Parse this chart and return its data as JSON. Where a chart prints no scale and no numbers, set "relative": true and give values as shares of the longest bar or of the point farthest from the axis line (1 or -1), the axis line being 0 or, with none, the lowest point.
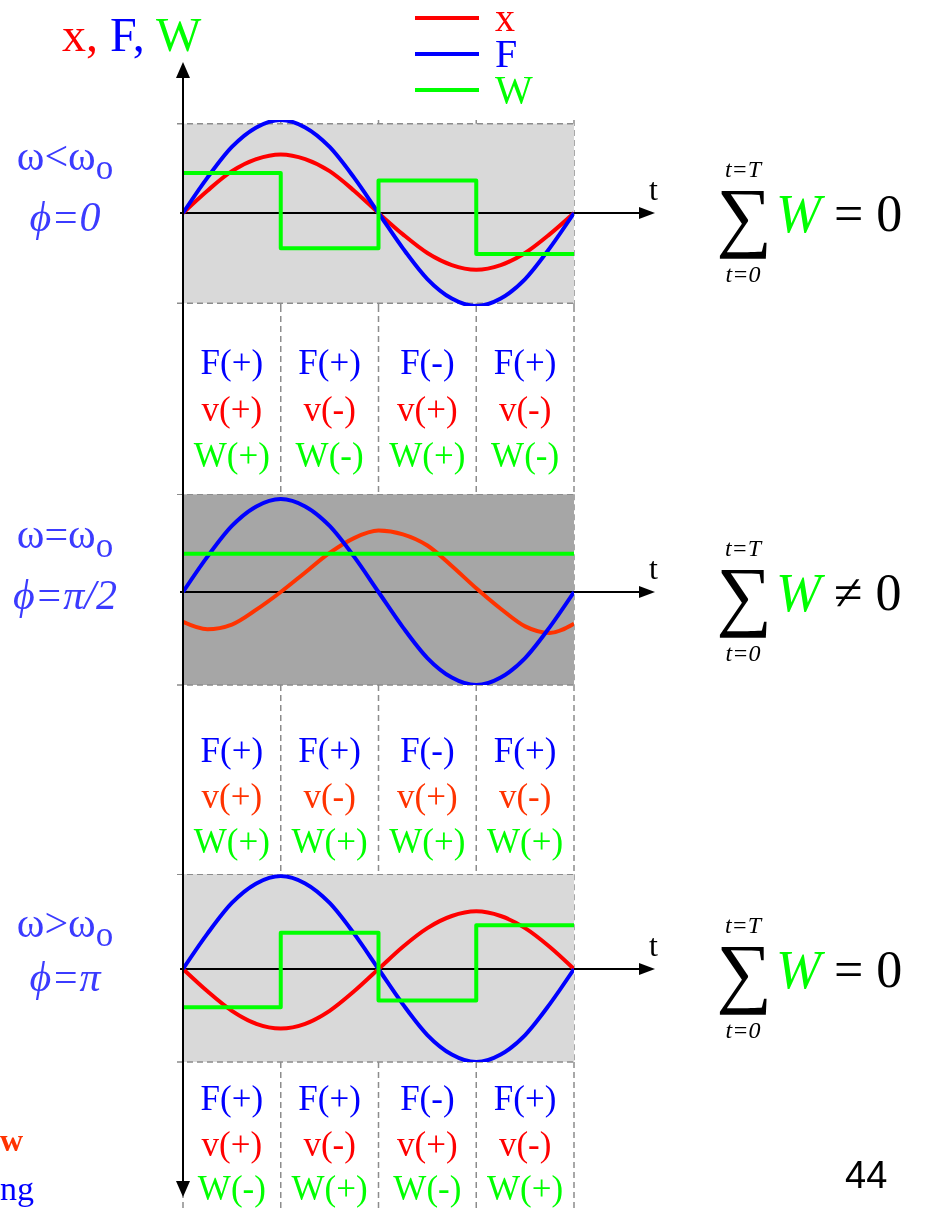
{
  "chart_data": [
    {
      "type": "line",
      "relative": true,
      "title": "ω<ω$_{o}$",
      "subtitle": "ϕ=0",
      "xlabel": "t",
      "ylabel": "x, F, W",
      "legend": "top",
      "grid": "x",
      "categories": [
        null,
        null,
        null,
        null,
        null,
        null,
        null,
        null,
        null,
        null,
        null,
        null,
        null,
        null,
        null,
        null,
        null
      ],
      "series": [
        {
          "name": "x",
          "color": "#ff0000",
          "values": [
            0,
            0.24,
            0.45,
            0.58,
            0.63,
            0.58,
            0.45,
            0.24,
            0,
            -0.23,
            -0.43,
            -0.56,
            -0.61,
            -0.56,
            -0.43,
            -0.23,
            0
          ]
        },
        {
          "name": "F",
          "color": "#0000ff",
          "values": [
            0,
            0.38,
            0.71,
            0.92,
            1,
            0.92,
            0.71,
            0.38,
            0,
            -0.38,
            -0.71,
            -0.92,
            -1,
            -0.92,
            -0.71,
            -0.38,
            0
          ]
        },
        {
          "name": "W",
          "type": "step",
          "color": "#00ff00",
          "values": [
            0.43,
            0.43,
            0.43,
            0.43,
            -0.38,
            -0.38,
            -0.38,
            -0.38,
            0.35,
            0.35,
            0.35,
            0.35,
            -0.44,
            -0.44,
            -0.44,
            -0.44,
            -0.44
          ]
        }
      ],
      "bands": [
        {
          "axis": "y",
          "from": -0.97,
          "to": 0.96,
          "color": "#d9d9d9"
        }
      ],
      "annotations": [
        "F(+)",
        "F(+)",
        "F(-)",
        "F(+)",
        "v(+)",
        "v(-)",
        "v(+)",
        "v(-)",
        "W(+)",
        "W(-)",
        "W(+)",
        "W(-)",
        "t=T",
        "∑",
        "W",
        "= 0",
        "t=0"
      ]
    },
    {
      "type": "line",
      "relative": true,
      "title": "ω=ω$_{o}$",
      "subtitle": "ϕ=π/2",
      "xlabel": "t",
      "grid": "x",
      "categories": [
        null,
        null,
        null,
        null,
        null,
        null,
        null,
        null,
        null,
        null,
        null,
        null,
        null,
        null,
        null,
        null,
        null
      ],
      "series": [
        {
          "color": "#ff3300",
          "values": [
            -0.32,
            -0.4,
            -0.35,
            -0.19,
            0,
            0.21,
            0.42,
            0.58,
            0.66,
            0.62,
            0.5,
            0.28,
            0.04,
            -0.18,
            -0.37,
            -0.44,
            -0.34
          ]
        },
        {
          "color": "#0000ff",
          "values": [
            0,
            0.38,
            0.71,
            0.92,
            1,
            0.92,
            0.71,
            0.38,
            0,
            -0.38,
            -0.71,
            -0.92,
            -1,
            -0.92,
            -0.71,
            -0.38,
            0
          ]
        },
        {
          "type": "step",
          "color": "#00ff00",
          "values": [
            0.41,
            0.41,
            0.41,
            0.41,
            0.41,
            0.41,
            0.41,
            0.41,
            0.41,
            0.41,
            0.41,
            0.41,
            0.41,
            0.41,
            0.41,
            0.41,
            0.41
          ]
        }
      ],
      "bands": [
        {
          "axis": "y",
          "from": -1,
          "to": 1.05,
          "color": "#a6a6a6"
        }
      ],
      "annotations": [
        "F(+)",
        "F(+)",
        "F(-)",
        "F(+)",
        "v(+)",
        "v(-)",
        "v(+)",
        "v(-)",
        "W(+)",
        "W(+)",
        "W(+)",
        "W(+)",
        "t=T",
        "∑",
        "W",
        "≠ 0",
        "t=0"
      ]
    },
    {
      "type": "line",
      "relative": true,
      "title": "ω>ω$_{o}$",
      "subtitle": "ϕ=π",
      "xlabel": "t",
      "grid": "x",
      "categories": [
        null,
        null,
        null,
        null,
        null,
        null,
        null,
        null,
        null,
        null,
        null,
        null,
        null,
        null,
        null,
        null,
        null
      ],
      "series": [
        {
          "color": "#ff0000",
          "values": [
            0,
            -0.24,
            -0.45,
            -0.59,
            -0.64,
            -0.59,
            -0.45,
            -0.24,
            0,
            0.24,
            0.44,
            0.57,
            0.62,
            0.57,
            0.44,
            0.24,
            0
          ]
        },
        {
          "color": "#0000ff",
          "values": [
            0,
            0.38,
            0.71,
            0.92,
            1,
            0.92,
            0.71,
            0.38,
            0,
            -0.38,
            -0.71,
            -0.92,
            -1,
            -0.92,
            -0.71,
            -0.38,
            0
          ]
        },
        {
          "type": "step",
          "color": "#00ff00",
          "values": [
            -0.41,
            -0.41,
            -0.41,
            -0.41,
            0.39,
            0.39,
            0.39,
            0.39,
            -0.34,
            -0.34,
            -0.34,
            -0.34,
            0.47,
            0.47,
            0.47,
            0.47,
            0.47
          ]
        }
      ],
      "bands": [
        {
          "axis": "y",
          "from": -1,
          "to": 1.02,
          "color": "#d9d9d9"
        }
      ],
      "annotations": [
        "F(+)",
        "F(+)",
        "F(-)",
        "F(+)",
        "v(+)",
        "v(-)",
        "v(+)",
        "v(-)",
        "W(-)",
        "W(+)",
        "W(-)",
        "W(+)",
        "t=T",
        "∑",
        "W",
        "= 0",
        "t=0",
        "44",
        "w",
        "ng"
      ]
    }
  ]
}
